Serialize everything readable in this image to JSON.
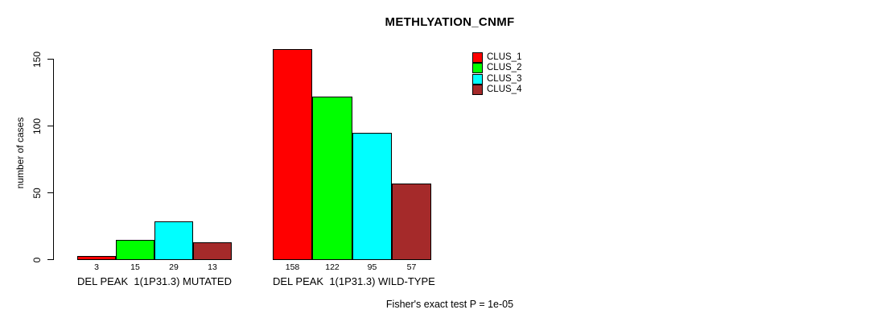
{
  "chart_data": {
    "type": "bar",
    "title": "METHLYATION_CNMF",
    "ylabel": "number of cases",
    "xlabel": "",
    "ylim": [
      0,
      150
    ],
    "yticks": [
      0,
      50,
      100,
      150
    ],
    "grid": false,
    "legend_position": "top-right",
    "bar_value_labels": true,
    "categories": [
      "DEL PEAK  1(1P31.3) MUTATED",
      "DEL PEAK  1(1P31.3) WILD-TYPE"
    ],
    "series": [
      {
        "name": "CLUS_1",
        "color": "#FF0000",
        "values": [
          3,
          158
        ]
      },
      {
        "name": "CLUS_2",
        "color": "#00FF00",
        "values": [
          15,
          122
        ]
      },
      {
        "name": "CLUS_3",
        "color": "#00FFFF",
        "values": [
          29,
          95
        ]
      },
      {
        "name": "CLUS_4",
        "color": "#A52A2A",
        "values": [
          13,
          57
        ]
      }
    ],
    "annotation": "Fisher's exact test P = 1e-05"
  }
}
